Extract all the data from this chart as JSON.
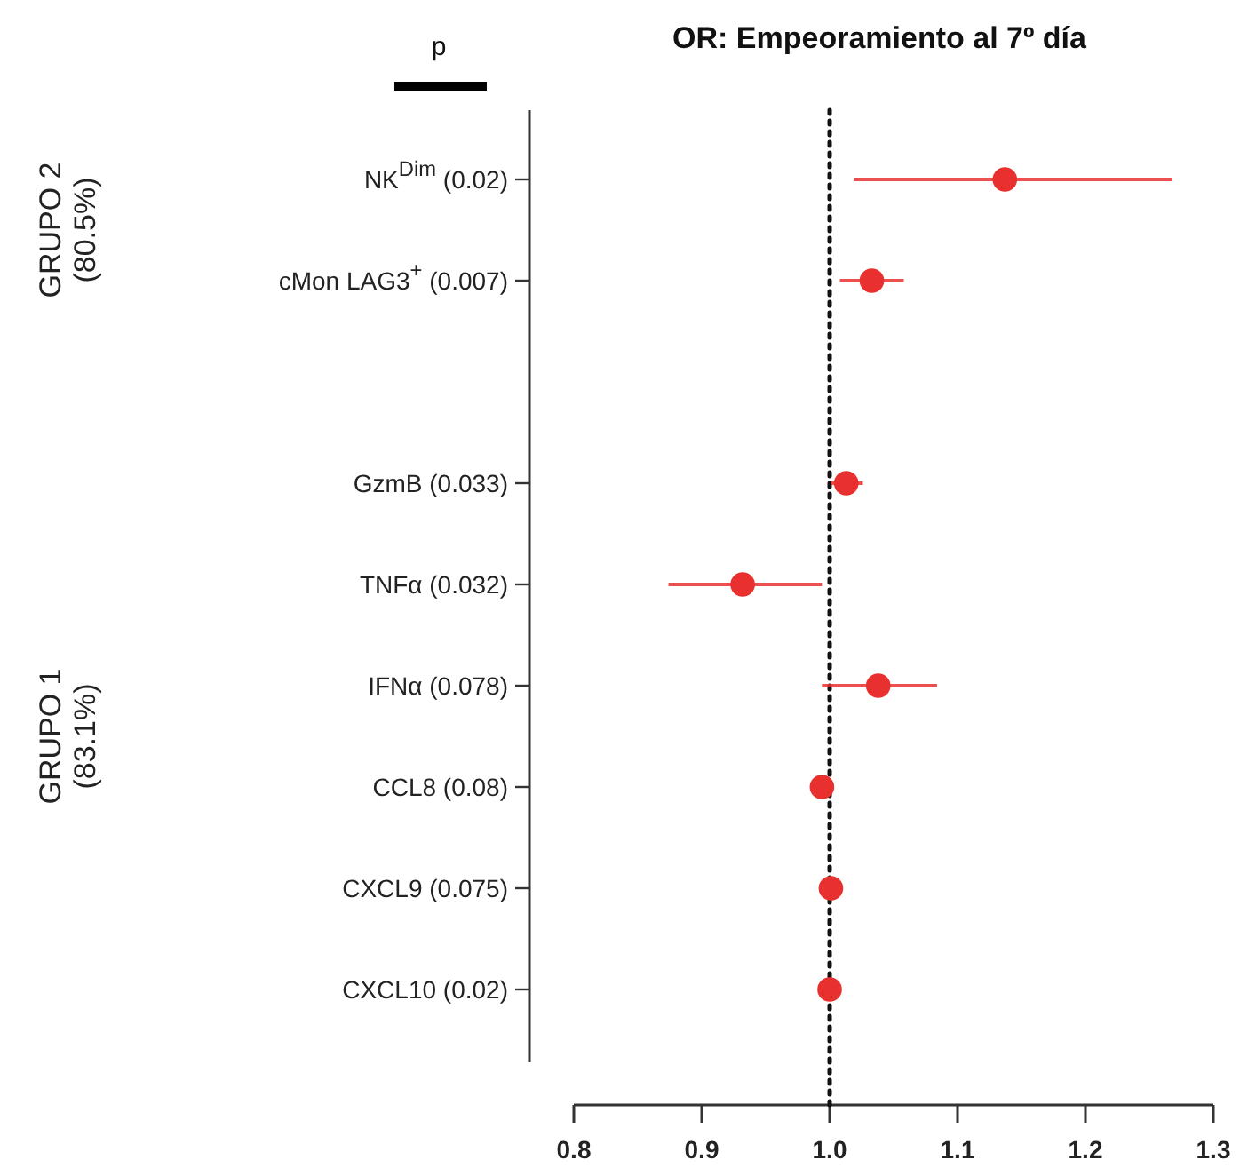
{
  "chart_data": {
    "type": "scatter",
    "title": "OR: Empeoramiento al 7º día",
    "orientation": "horizontal",
    "categories": [
      "NK$^{Dim}$ (0.02)",
      "cMon LAG3$^{+}$ (0.007)",
      null,
      "GzmB (0.033)",
      "TNFα  (0.032)",
      "IFNα  (0.078)",
      "CCL8 (0.08)",
      "CXCL9 (0.075)",
      "CXCL10 (0.02)"
    ],
    "series": [
      {
        "color": "#e8312f",
        "values": [
          1.137,
          1.033,
          null,
          1.013,
          0.932,
          1.038,
          0.994,
          1.001,
          1.0
        ],
        "errors": [
          [
            1.019,
            1.268
          ],
          [
            1.008,
            1.058
          ],
          null,
          [
            1.001,
            1.026
          ],
          [
            0.874,
            0.994
          ],
          [
            0.994,
            1.084
          ],
          null,
          null,
          null
        ]
      }
    ],
    "xlim": [
      0.8,
      1.3
    ],
    "xticks": [
      {
        "value": 0.8,
        "label": "0.8"
      },
      {
        "value": 0.9,
        "label": "0.9"
      },
      {
        "value": 1.0,
        "label": "1.0"
      },
      {
        "value": 1.1,
        "label": "1.1"
      },
      {
        "value": 1.2,
        "label": "1.2"
      },
      {
        "value": 1.3,
        "label": "1.3"
      }
    ],
    "ref_lines": [
      {
        "axis": "x",
        "value": 1.0,
        "color": "#111111",
        "line_style": "dotted"
      }
    ],
    "marker": "circle",
    "grid": false,
    "annotations": [
      "p",
      "GRUPO 2\n(80.5%)",
      "GRUPO 1\n(83.1%)"
    ]
  }
}
